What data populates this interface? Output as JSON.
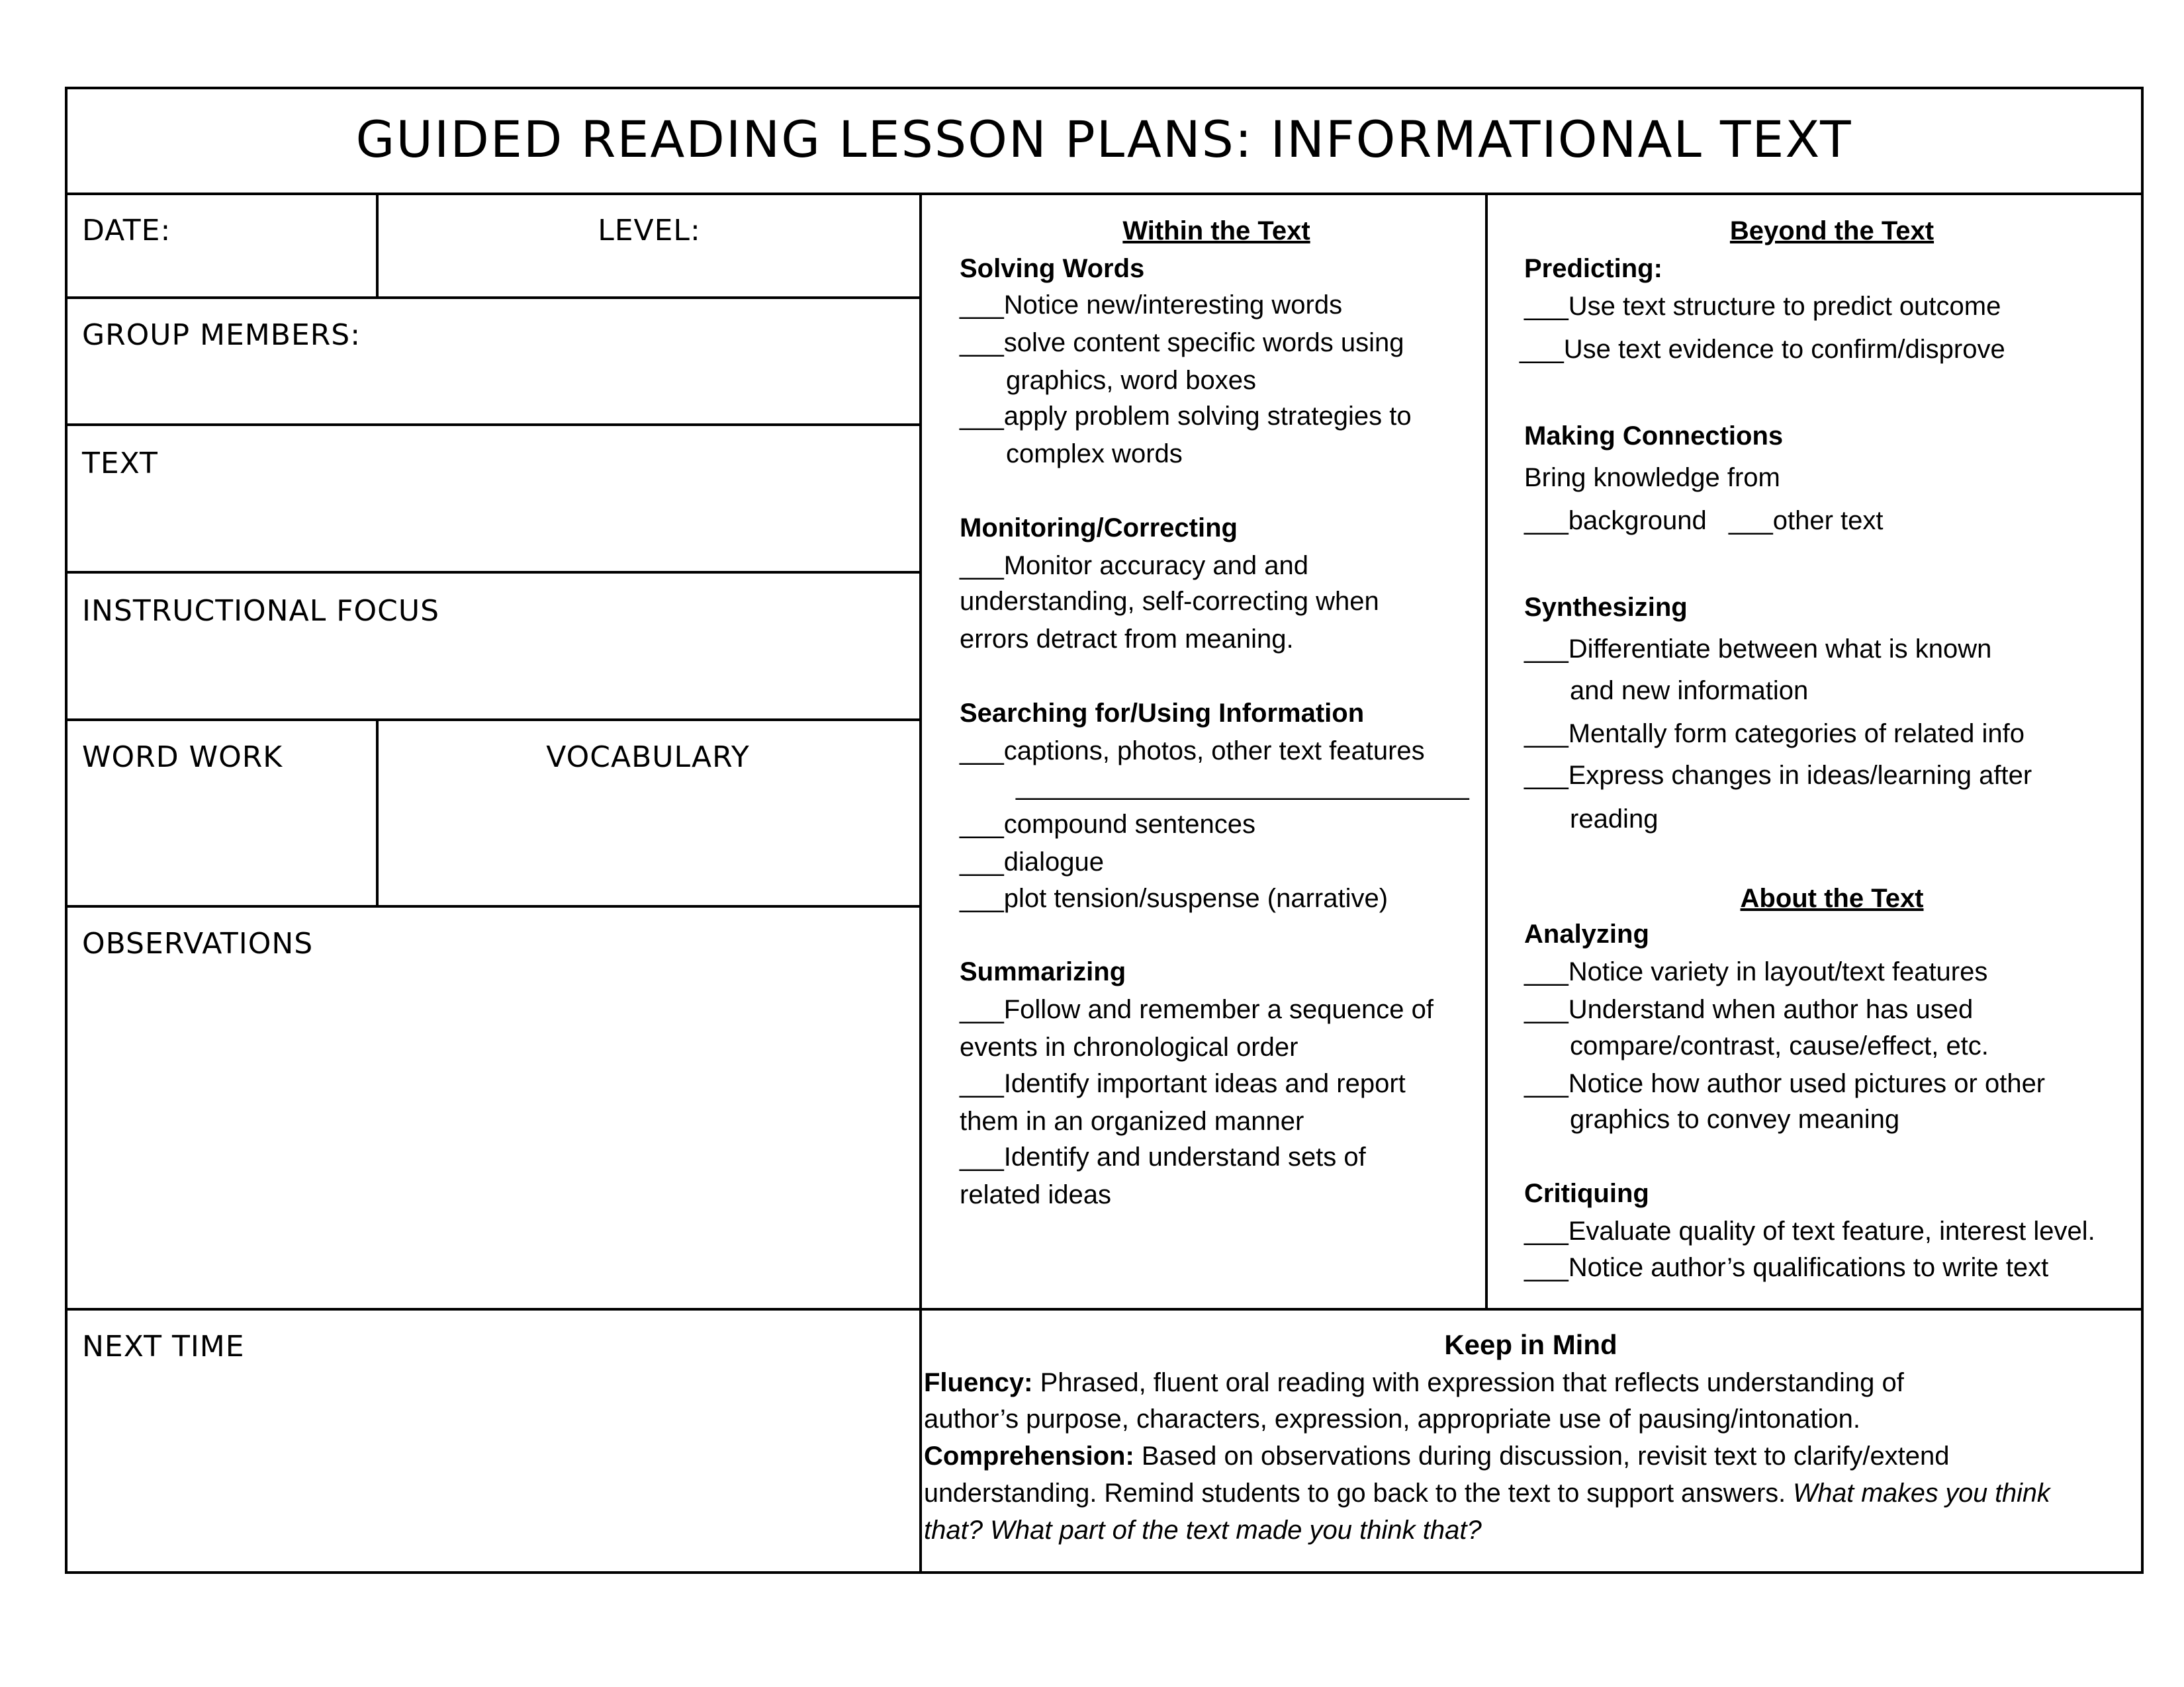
{
  "title": "Guided Reading Lesson Plans: Informational Text",
  "left": {
    "date": "Date:",
    "level": "Level:",
    "group_members": "Group Members:",
    "text": "Text",
    "instructional_focus": "Instructional Focus",
    "word_work": "Word Work",
    "vocabulary": "Vocabulary",
    "observations": "Observations",
    "next_time": "Next Time"
  },
  "within": {
    "heading": "Within the Text",
    "solving_words": {
      "title": "Solving Words",
      "items": [
        "___Notice new/interesting words",
        "___solve content specific words using",
        "graphics, word boxes",
        "___apply problem solving strategies to",
        "complex words"
      ]
    },
    "monitoring": {
      "title": "Monitoring/Correcting",
      "items": [
        "___Monitor accuracy and and",
        "understanding, self-correcting when",
        "errors detract from meaning."
      ]
    },
    "searching": {
      "title": "Searching for/Using Information",
      "items": [
        "___captions, photos, other text features",
        "______________________________",
        "___compound sentences",
        "___dialogue",
        "___plot tension/suspense (narrative)"
      ]
    },
    "summarizing": {
      "title": "Summarizing",
      "items": [
        "___Follow and remember a sequence of",
        "events in chronological order",
        "___Identify important ideas and report",
        "them in an organized manner",
        "___Identify and understand sets of",
        "related ideas"
      ]
    }
  },
  "beyond": {
    "heading": "Beyond the Text",
    "predicting": {
      "title": "Predicting:",
      "items": [
        "___Use text structure to predict outcome",
        "___Use text evidence to confirm/disprove"
      ]
    },
    "connections": {
      "title": "Making Connections",
      "items": [
        "Bring knowledge from",
        "___background",
        "___other text"
      ]
    },
    "synthesizing": {
      "title": "Synthesizing",
      "items": [
        "___Differentiate between what is known",
        "and new information",
        "___Mentally form categories of related info",
        "___Express changes in ideas/learning after",
        "reading"
      ]
    }
  },
  "about": {
    "heading": "About the Text",
    "analyzing": {
      "title": "Analyzing",
      "items": [
        "___Notice variety in layout/text features",
        "___Understand when author has used",
        "compare/contrast, cause/effect, etc.",
        "___Notice how author used pictures or other",
        "graphics to convey meaning"
      ]
    },
    "critiquing": {
      "title": "Critiquing",
      "items": [
        "___Evaluate quality of text feature, interest level.",
        "___Notice author’s qualifications to write text"
      ]
    }
  },
  "keep_in_mind": {
    "heading": "Keep in Mind",
    "fluency_label": "Fluency:",
    "fluency_1": " Phrased, fluent oral reading with expression that reflects understanding of",
    "fluency_2": "author’s purpose, characters, expression, appropriate use of pausing/intonation.",
    "comprehension_label": "Comprehension:",
    "comprehension_1": " Based on observations during discussion, revisit text to clarify/extend",
    "comprehension_2": "understanding. Remind students to go back to the text to support answers. ",
    "comprehension_2_italic": "What makes you think",
    "comprehension_3_italic": "that? What part of the text made you think that?"
  }
}
